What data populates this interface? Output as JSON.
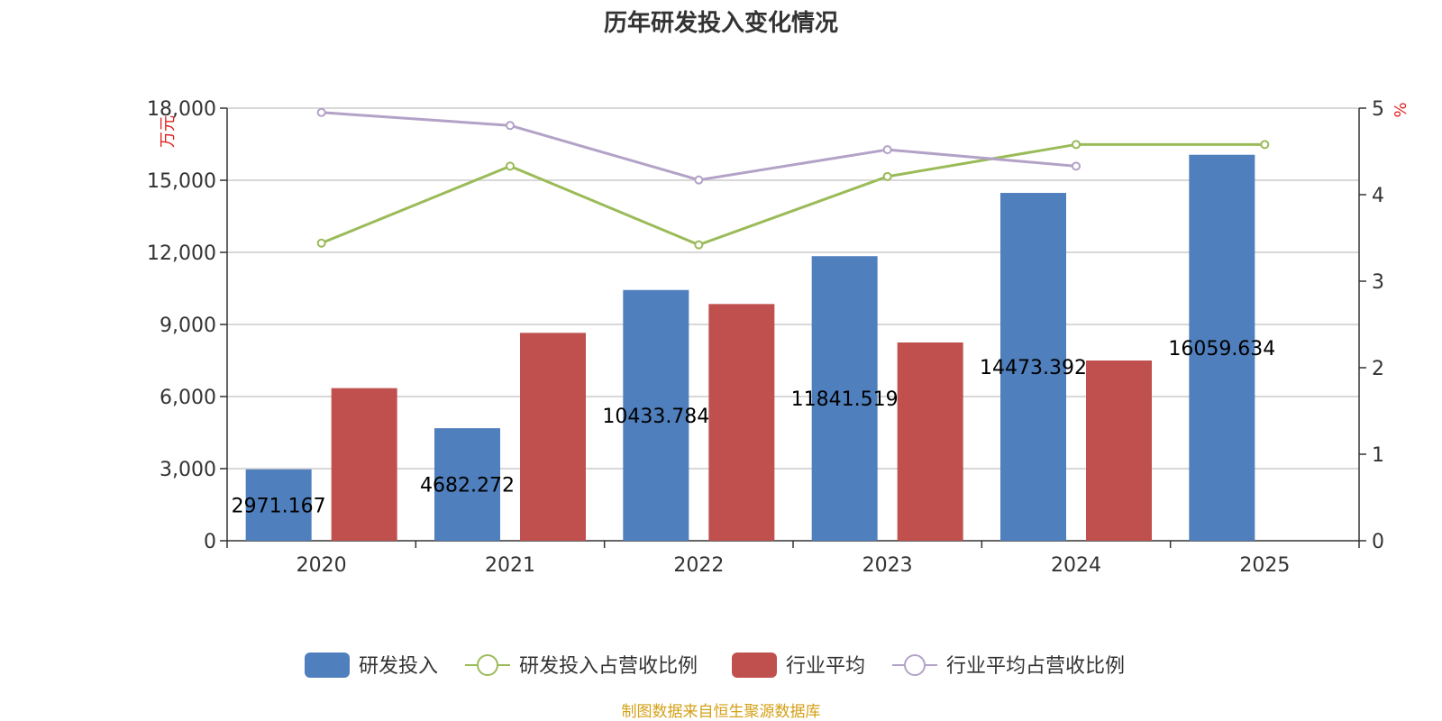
{
  "chart_data": {
    "type": "bar",
    "title": "历年研发投入变化情况",
    "categories": [
      "2020",
      "2021",
      "2022",
      "2023",
      "2024",
      "2025"
    ],
    "y_left": {
      "unit": "万元",
      "ylim": [
        0,
        18000
      ],
      "ticks": [
        "0",
        "3,000",
        "6,000",
        "9,000",
        "12,000",
        "15,000",
        "18,000"
      ],
      "tick_values": [
        0,
        3000,
        6000,
        9000,
        12000,
        15000,
        18000
      ]
    },
    "y_right": {
      "unit": "%",
      "ylim": [
        0,
        5
      ],
      "ticks": [
        "0",
        "1",
        "2",
        "3",
        "4",
        "5"
      ],
      "tick_values": [
        0,
        1,
        2,
        3,
        4,
        5
      ]
    },
    "series": [
      {
        "name": "研发投入",
        "kind": "bar",
        "axis": "left",
        "color": "#4f7fbd",
        "values": [
          2971.167,
          4682.272,
          10433.784,
          11841.519,
          14473.392,
          16059.634
        ],
        "labels": [
          "2971.167",
          "4682.272",
          "10433.784",
          "11841.519",
          "14473.392",
          "16059.634"
        ]
      },
      {
        "name": "研发投入占营收比例",
        "kind": "line",
        "axis": "right",
        "color": "#9bbb59",
        "values": [
          3.44,
          4.33,
          3.42,
          4.21,
          4.58,
          4.58
        ]
      },
      {
        "name": "行业平均",
        "kind": "bar",
        "axis": "left",
        "color": "#c0504d",
        "values": [
          6350,
          8650,
          9850,
          8250,
          7500,
          null
        ]
      },
      {
        "name": "行业平均占营收比例",
        "kind": "line",
        "axis": "right",
        "color": "#b3a2c7",
        "values": [
          4.95,
          4.8,
          4.17,
          4.52,
          4.33,
          null
        ]
      }
    ],
    "source": "制图数据来自恒生聚源数据库"
  }
}
